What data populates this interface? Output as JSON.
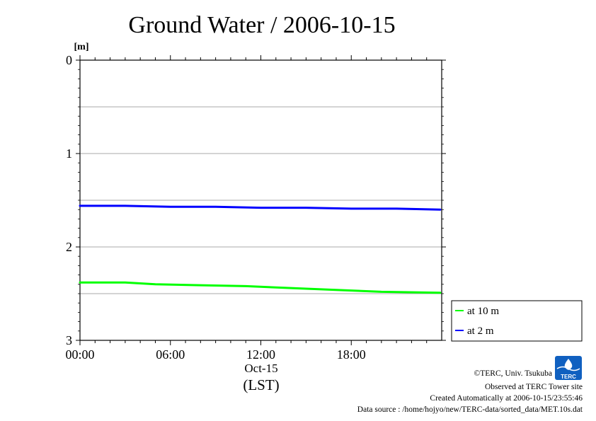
{
  "chart_data": {
    "type": "line",
    "title": "Ground Water / 2006-10-15",
    "ylabel": "[m]",
    "ylim": [
      0,
      3
    ],
    "y_inverted": true,
    "y_ticks": [
      {
        "value": 0,
        "label": "0"
      },
      {
        "value": 1,
        "label": "1"
      },
      {
        "value": 2,
        "label": "2"
      },
      {
        "value": 3,
        "label": "3"
      }
    ],
    "y_gridlines": [
      0.5,
      1,
      1.5,
      2,
      2.5
    ],
    "xlim_hours": [
      0,
      24
    ],
    "x_ticks": [
      {
        "hour": 0,
        "label": "00:00"
      },
      {
        "hour": 6,
        "label": "06:00"
      },
      {
        "hour": 12,
        "label": "12:00"
      },
      {
        "hour": 18,
        "label": "18:00"
      }
    ],
    "x_date_label": "Oct-15",
    "x_unit_label": "(LST)",
    "legend_position": "right",
    "series": [
      {
        "name": "at 10 m",
        "color": "#00ff00",
        "x": [
          0,
          2,
          3,
          5,
          8,
          11,
          14,
          17,
          20,
          23.9
        ],
        "values": [
          2.38,
          2.38,
          2.38,
          2.4,
          2.41,
          2.42,
          2.44,
          2.46,
          2.48,
          2.49
        ]
      },
      {
        "name": "at 2 m",
        "color": "#0000ff",
        "x": [
          0,
          3,
          6,
          9,
          12,
          15,
          18,
          21,
          23.9
        ],
        "values": [
          1.56,
          1.56,
          1.57,
          1.57,
          1.58,
          1.58,
          1.59,
          1.59,
          1.6
        ]
      }
    ]
  },
  "footer": {
    "copyright": "©TERC, Univ. Tsukuba",
    "observed": "Observed at TERC Tower site",
    "created": "Created Automatically at 2006-10-15/23:55:46",
    "source": "Data source : /home/hojyo/new/TERC-data/sorted_data/MET.10s.dat"
  },
  "logo": {
    "text": "TERC",
    "color": "#1060c0"
  }
}
